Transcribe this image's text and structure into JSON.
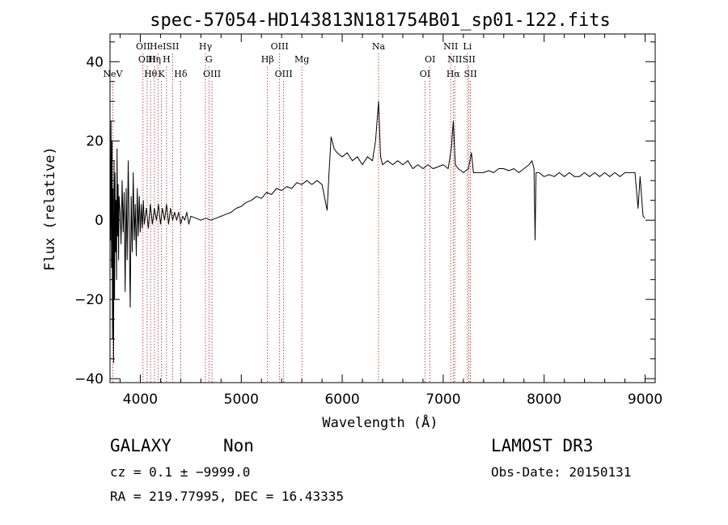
{
  "chart_data": {
    "type": "line",
    "title": "spec-57054-HD143813N181754B01_sp01-122.fits",
    "xlabel": "Wavelength (Å)",
    "ylabel": "Flux (relative)",
    "xlim": [
      3700,
      9100
    ],
    "ylim": [
      -41,
      47
    ],
    "x_ticks": [
      4000,
      5000,
      6000,
      7000,
      8000,
      9000
    ],
    "y_ticks": [
      -40,
      -20,
      0,
      20,
      40
    ],
    "x_tick_labels": [
      "4000",
      "5000",
      "6000",
      "7000",
      "8000",
      "9000"
    ],
    "y_tick_labels": [
      "−40",
      "−20",
      "0",
      "20",
      "40"
    ],
    "grid": false,
    "series": [
      {
        "values_xy": [
          [
            3700,
            14
          ],
          [
            3705,
            -5
          ],
          [
            3710,
            25
          ],
          [
            3715,
            -12
          ],
          [
            3720,
            20
          ],
          [
            3725,
            -30
          ],
          [
            3730,
            8
          ],
          [
            3735,
            -36
          ],
          [
            3740,
            15
          ],
          [
            3745,
            -20
          ],
          [
            3750,
            12
          ],
          [
            3755,
            -8
          ],
          [
            3760,
            5
          ],
          [
            3765,
            -15
          ],
          [
            3770,
            18
          ],
          [
            3775,
            -4
          ],
          [
            3780,
            9
          ],
          [
            3785,
            -10
          ],
          [
            3790,
            6
          ],
          [
            3800,
            2
          ],
          [
            3810,
            -6
          ],
          [
            3820,
            10
          ],
          [
            3830,
            -3
          ],
          [
            3840,
            7
          ],
          [
            3850,
            -18
          ],
          [
            3860,
            8
          ],
          [
            3870,
            -10
          ],
          [
            3880,
            15
          ],
          [
            3890,
            -2
          ],
          [
            3900,
            -22
          ],
          [
            3910,
            6
          ],
          [
            3920,
            -8
          ],
          [
            3930,
            12
          ],
          [
            3940,
            -5
          ],
          [
            3950,
            4
          ],
          [
            3960,
            -9
          ],
          [
            3970,
            8
          ],
          [
            3980,
            -4
          ],
          [
            3990,
            6
          ],
          [
            4000,
            -3
          ],
          [
            4010,
            4
          ],
          [
            4020,
            -2
          ],
          [
            4030,
            5
          ],
          [
            4040,
            -1
          ],
          [
            4060,
            3
          ],
          [
            4080,
            -2
          ],
          [
            4100,
            4
          ],
          [
            4120,
            -1
          ],
          [
            4140,
            3
          ],
          [
            4160,
            0
          ],
          [
            4180,
            4
          ],
          [
            4200,
            -1
          ],
          [
            4220,
            3
          ],
          [
            4240,
            0
          ],
          [
            4260,
            4
          ],
          [
            4280,
            -1
          ],
          [
            4300,
            3
          ],
          [
            4320,
            0
          ],
          [
            4340,
            2
          ],
          [
            4360,
            0
          ],
          [
            4380,
            2
          ],
          [
            4400,
            -1
          ],
          [
            4420,
            1
          ],
          [
            4440,
            0
          ],
          [
            4460,
            2
          ],
          [
            4480,
            -1
          ],
          [
            4500,
            1
          ],
          [
            4550,
            0.5
          ],
          [
            4600,
            0
          ],
          [
            4650,
            0.5
          ],
          [
            4700,
            0
          ],
          [
            4750,
            0.5
          ],
          [
            4800,
            1
          ],
          [
            4850,
            1.5
          ],
          [
            4900,
            2
          ],
          [
            4950,
            3
          ],
          [
            5000,
            3.5
          ],
          [
            5050,
            4.5
          ],
          [
            5100,
            5
          ],
          [
            5150,
            6
          ],
          [
            5200,
            5.5
          ],
          [
            5250,
            7
          ],
          [
            5300,
            6.5
          ],
          [
            5350,
            8
          ],
          [
            5400,
            7.5
          ],
          [
            5450,
            8.5
          ],
          [
            5500,
            8
          ],
          [
            5550,
            9.5
          ],
          [
            5600,
            9
          ],
          [
            5650,
            10
          ],
          [
            5700,
            9
          ],
          [
            5750,
            10
          ],
          [
            5800,
            9
          ],
          [
            5850,
            2.5
          ],
          [
            5870,
            12
          ],
          [
            5890,
            21
          ],
          [
            5920,
            18
          ],
          [
            5950,
            17
          ],
          [
            6000,
            16
          ],
          [
            6050,
            17
          ],
          [
            6100,
            15
          ],
          [
            6150,
            16
          ],
          [
            6200,
            14
          ],
          [
            6250,
            16
          ],
          [
            6300,
            15
          ],
          [
            6330,
            20
          ],
          [
            6360,
            30
          ],
          [
            6380,
            16
          ],
          [
            6400,
            14
          ],
          [
            6450,
            15
          ],
          [
            6500,
            14
          ],
          [
            6550,
            15
          ],
          [
            6600,
            14
          ],
          [
            6650,
            15
          ],
          [
            6700,
            13
          ],
          [
            6750,
            14
          ],
          [
            6800,
            13
          ],
          [
            6850,
            14
          ],
          [
            6900,
            13
          ],
          [
            6950,
            13.5
          ],
          [
            7000,
            14
          ],
          [
            7050,
            13
          ],
          [
            7080,
            18
          ],
          [
            7100,
            25
          ],
          [
            7120,
            14
          ],
          [
            7150,
            13
          ],
          [
            7200,
            12
          ],
          [
            7250,
            13
          ],
          [
            7280,
            17
          ],
          [
            7300,
            12
          ],
          [
            7350,
            12
          ],
          [
            7400,
            12
          ],
          [
            7450,
            12.5
          ],
          [
            7500,
            12
          ],
          [
            7550,
            13
          ],
          [
            7600,
            13
          ],
          [
            7650,
            12.5
          ],
          [
            7700,
            13
          ],
          [
            7750,
            12
          ],
          [
            7800,
            13
          ],
          [
            7850,
            14
          ],
          [
            7880,
            15
          ],
          [
            7900,
            13
          ],
          [
            7910,
            -5
          ],
          [
            7920,
            12
          ],
          [
            7950,
            12
          ],
          [
            8000,
            11
          ],
          [
            8050,
            11.5
          ],
          [
            8100,
            11
          ],
          [
            8150,
            12
          ],
          [
            8200,
            11
          ],
          [
            8250,
            12
          ],
          [
            8300,
            11
          ],
          [
            8350,
            11
          ],
          [
            8400,
            12
          ],
          [
            8450,
            11
          ],
          [
            8500,
            12
          ],
          [
            8550,
            11
          ],
          [
            8600,
            12
          ],
          [
            8650,
            11
          ],
          [
            8700,
            12
          ],
          [
            8750,
            11
          ],
          [
            8800,
            12
          ],
          [
            8850,
            12
          ],
          [
            8900,
            12
          ],
          [
            8930,
            3
          ],
          [
            8950,
            11
          ],
          [
            8980,
            1
          ],
          [
            9000,
            0.5
          ]
        ]
      }
    ],
    "line_markers": [
      {
        "x": 3727,
        "label": "NeV",
        "row": 3
      },
      {
        "x": 4027,
        "label": "OII",
        "row": 1
      },
      {
        "x": 4068,
        "label": "OIII",
        "row": 2
      },
      {
        "x": 4102,
        "label": "Hθ",
        "row": 3
      },
      {
        "x": 4140,
        "label": "Hη",
        "row": 2
      },
      {
        "x": 4175,
        "label": "HeI",
        "row": 1
      },
      {
        "x": 4210,
        "label": "K",
        "row": 3
      },
      {
        "x": 4260,
        "label": "H",
        "row": 2
      },
      {
        "x": 4320,
        "label": "SII",
        "row": 1
      },
      {
        "x": 4400,
        "label": "Hδ",
        "row": 3
      },
      {
        "x": 4645,
        "label": "Hγ",
        "row": 1
      },
      {
        "x": 4680,
        "label": "G",
        "row": 2
      },
      {
        "x": 4710,
        "label": "OIII",
        "row": 3
      },
      {
        "x": 5260,
        "label": "Hβ",
        "row": 2
      },
      {
        "x": 5380,
        "label": "OIII",
        "row": 1
      },
      {
        "x": 5420,
        "label": "OIII",
        "row": 3
      },
      {
        "x": 5600,
        "label": "Mg",
        "row": 2
      },
      {
        "x": 6360,
        "label": "Na",
        "row": 1
      },
      {
        "x": 6820,
        "label": "OI",
        "row": 3
      },
      {
        "x": 6870,
        "label": "OI",
        "row": 2
      },
      {
        "x": 7075,
        "label": "NII",
        "row": 1
      },
      {
        "x": 7100,
        "label": "Hα",
        "row": 3
      },
      {
        "x": 7115,
        "label": "NII",
        "row": 2
      },
      {
        "x": 7240,
        "label": "Li",
        "row": 1
      },
      {
        "x": 7255,
        "label": "SII",
        "row": 2
      },
      {
        "x": 7270,
        "label": "SII",
        "row": 3
      }
    ]
  },
  "info": {
    "object_class": "GALAXY",
    "subclass": "Non",
    "survey": "LAMOST DR3",
    "cz": "cz = 0.1 ± −9999.0",
    "obs_date": "Obs-Date: 20150131",
    "coords": "RA = 219.77995, DEC =  16.43335"
  },
  "colors": {
    "spectrum": "#000000",
    "marker": "#b02020"
  }
}
